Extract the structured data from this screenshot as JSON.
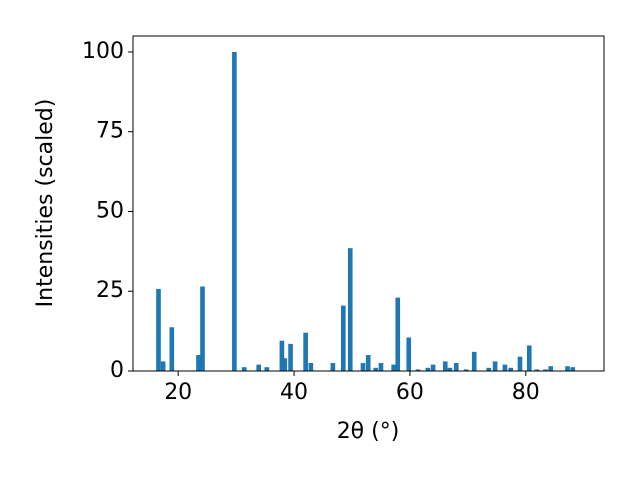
{
  "chart_data": {
    "type": "bar",
    "xlabel": "2θ (°)",
    "ylabel": "Intensities (scaled)",
    "x": [
      16.6,
      17.4,
      18.9,
      23.5,
      24.2,
      29.7,
      31.4,
      33.9,
      35.3,
      37.9,
      38.4,
      39.4,
      42.0,
      42.9,
      46.7,
      48.5,
      49.7,
      51.9,
      52.8,
      54.1,
      55.0,
      57.2,
      57.9,
      59.8,
      61.4,
      63.1,
      64.0,
      66.1,
      66.9,
      68.0,
      69.7,
      71.1,
      73.6,
      74.7,
      76.4,
      77.4,
      79.0,
      80.6,
      81.9,
      83.4,
      84.3,
      87.2,
      88.1
    ],
    "values": [
      25.7,
      3,
      13.7,
      5,
      26.5,
      100,
      1.2,
      2,
      1.2,
      9.5,
      4,
      8.5,
      12,
      2.5,
      2.5,
      20.5,
      38.5,
      2.5,
      5,
      1,
      2.5,
      2,
      23,
      10.5,
      0.5,
      1,
      2,
      3,
      1,
      2.5,
      0.5,
      6,
      1,
      3,
      2,
      1,
      4.5,
      8,
      0.5,
      0.5,
      1.5,
      1.5,
      1.2
    ],
    "color": "#1f77b4",
    "xlim": [
      12.2,
      93.5
    ],
    "xticks": [
      20,
      40,
      60,
      80
    ],
    "ylim": [
      0,
      105
    ],
    "yticks": [
      0,
      25,
      50,
      75,
      100
    ]
  }
}
